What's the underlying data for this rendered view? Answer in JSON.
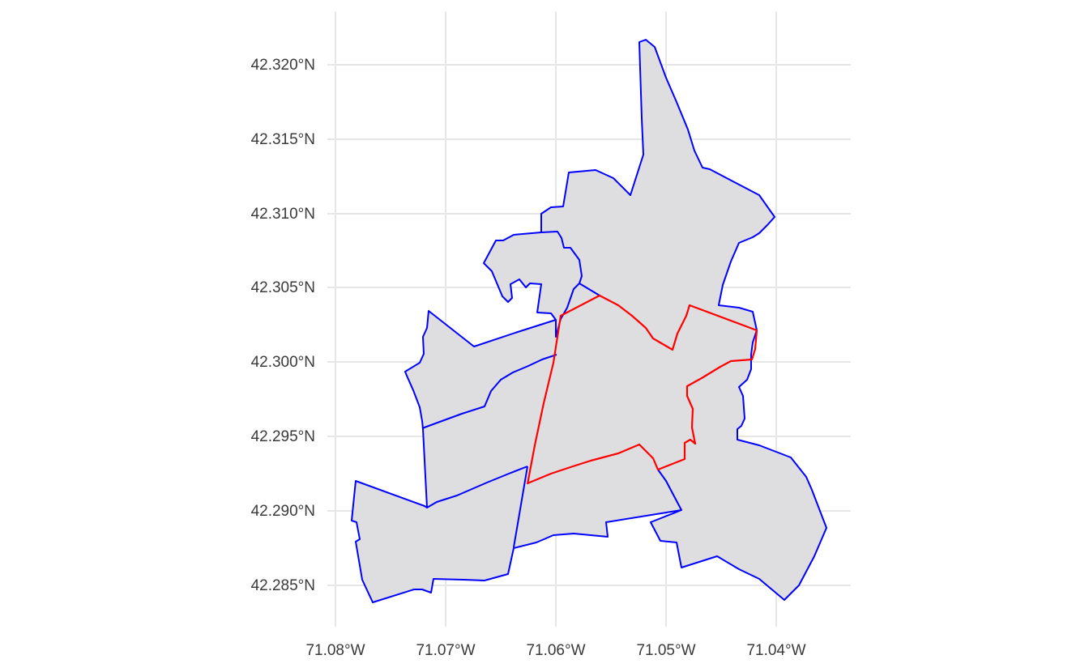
{
  "map": {
    "x_ticks": [
      {
        "value": -71.08,
        "label": "71.08°W"
      },
      {
        "value": -71.07,
        "label": "71.07°W"
      },
      {
        "value": -71.06,
        "label": "71.06°W"
      },
      {
        "value": -71.05,
        "label": "71.05°W"
      },
      {
        "value": -71.04,
        "label": "71.04°W"
      }
    ],
    "y_ticks": [
      {
        "value": 42.285,
        "label": "42.285°N"
      },
      {
        "value": 42.29,
        "label": "42.290°N"
      },
      {
        "value": 42.295,
        "label": "42.295°N"
      },
      {
        "value": 42.3,
        "label": "42.300°N"
      },
      {
        "value": 42.305,
        "label": "42.305°N"
      },
      {
        "value": 42.31,
        "label": "42.310°N"
      },
      {
        "value": 42.315,
        "label": "42.315°N"
      },
      {
        "value": 42.32,
        "label": "42.320°N"
      }
    ],
    "colors": {
      "fill": "#dedee0",
      "blue_boundary": "#0000ff",
      "red_boundary": "#ff0000",
      "grid": "#e6e6e6"
    }
  }
}
